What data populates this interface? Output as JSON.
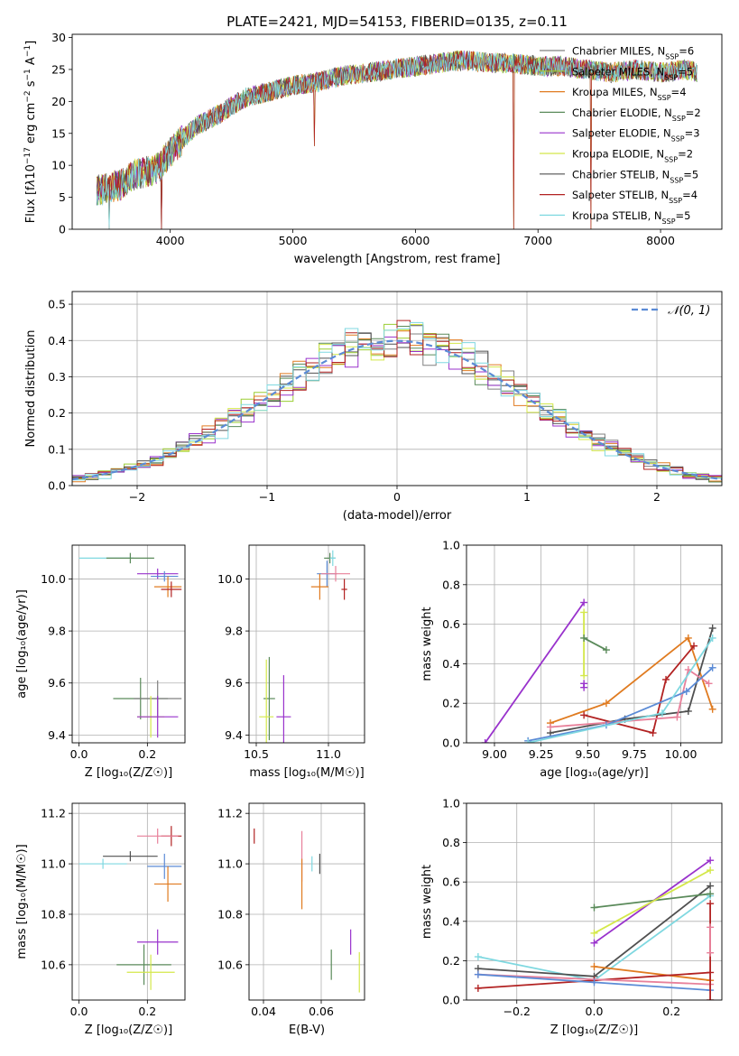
{
  "chart_data": [
    {
      "id": "spectrum",
      "type": "line",
      "title": "PLATE=2421, MJD=54153, FIBERID=0135, z=0.11",
      "xlabel": "wavelength [Angstrom, rest frame]",
      "ylabel_parts": [
        "Flux [f",
        "λ",
        "10",
        "−17",
        " erg cm",
        "−2",
        " s",
        "−1",
        " A",
        "−1",
        "]"
      ],
      "xlim": [
        3200,
        8500
      ],
      "ylim": [
        0,
        30.5
      ],
      "xticks": [
        4000,
        5000,
        6000,
        7000,
        8000
      ],
      "yticks": [
        0,
        5,
        10,
        15,
        20,
        25,
        30
      ],
      "grid": false,
      "legend_position": "top-right",
      "series": [
        {
          "name": "Chabrier MILES",
          "nssp": "6",
          "color": "#808080"
        },
        {
          "name": "Salpeter MILES",
          "nssp": "5",
          "color": "#9acd32"
        },
        {
          "name": "Kroupa MILES",
          "nssp": "4",
          "color": "#e07b20"
        },
        {
          "name": "Chabrier ELODIE",
          "nssp": "2",
          "color": "#5a8a5a"
        },
        {
          "name": "Salpeter ELODIE",
          "nssp": "3",
          "color": "#9932cc"
        },
        {
          "name": "Kroupa ELODIE",
          "nssp": "2",
          "color": "#d4e84a"
        },
        {
          "name": "Chabrier STELIB",
          "nssp": "5",
          "color": "#505050"
        },
        {
          "name": "Salpeter STELIB",
          "nssp": "4",
          "color": "#b22222"
        },
        {
          "name": "Kroupa STELIB",
          "nssp": "5",
          "color": "#7fd8e0"
        }
      ],
      "envelope": {
        "x": [
          3400,
          3500,
          3600,
          3700,
          3800,
          3900,
          4000,
          4100,
          4200,
          4300,
          4400,
          4600,
          4800,
          5000,
          5200,
          5400,
          5600,
          5800,
          6000,
          6200,
          6400,
          6600,
          6800,
          7000,
          7200,
          7400,
          7600,
          7800,
          8000,
          8200,
          8300
        ],
        "y": [
          6,
          6.5,
          7,
          8.5,
          9,
          9.5,
          12,
          14,
          16,
          17,
          18,
          20.5,
          21.5,
          22.5,
          23,
          24,
          24.5,
          25,
          25.5,
          26,
          26.5,
          26,
          26,
          25.5,
          25.5,
          25,
          24.5,
          25,
          24.5,
          25,
          24.5
        ]
      },
      "dips": [
        {
          "x": 3500,
          "y": 0
        },
        {
          "x": 3930,
          "y": 0
        },
        {
          "x": 5175,
          "y": 13
        },
        {
          "x": 6800,
          "y": 0
        },
        {
          "x": 7430,
          "y": 0
        }
      ]
    },
    {
      "id": "residuals",
      "type": "line",
      "xlabel": "(data-model)/error",
      "ylabel": "Normed distribution",
      "xlim": [
        -2.5,
        2.5
      ],
      "ylim": [
        0,
        0.535
      ],
      "xticks": [
        -2,
        -1,
        0,
        1,
        2
      ],
      "xtick_labels": [
        "−2",
        "−1",
        "0",
        "1",
        "2"
      ],
      "yticks": [
        0.0,
        0.1,
        0.2,
        0.3,
        0.4,
        0.5
      ],
      "ytick_labels": [
        "0.0",
        "0.1",
        "0.2",
        "0.3",
        "0.4",
        "0.5"
      ],
      "grid": true,
      "legend_position": "top-right",
      "legend_label": "𝒩(0, 1)",
      "gauss_color": "#5b8bd6",
      "bin_width": 0.1,
      "hist_colors": [
        "#808080",
        "#9acd32",
        "#e07b20",
        "#5a8a5a",
        "#9932cc",
        "#d4e84a",
        "#505050",
        "#b22222",
        "#7fd8e0"
      ]
    },
    {
      "id": "age_vs_Z",
      "type": "scatter",
      "xlabel": "Z [log₁₀(Z/Z☉)]",
      "ylabel": "age  [log₁₀(age/yr)]",
      "xlim": [
        -0.02,
        0.31
      ],
      "ylim": [
        9.37,
        10.13
      ],
      "xticks": [
        0.0,
        0.2
      ],
      "xtick_labels": [
        "0.0",
        "0.2"
      ],
      "yticks": [
        9.4,
        9.6,
        9.8,
        10.0
      ],
      "ytick_labels": [
        "9.4",
        "9.6",
        "9.8",
        "10.0"
      ],
      "grid": true,
      "points": [
        {
          "x": 0.08,
          "y": 10.08,
          "dx": 0.08,
          "dy": 0.0,
          "color": "#7fd8e0"
        },
        {
          "x": 0.15,
          "y": 10.08,
          "dx": 0.07,
          "dy": 0.02,
          "color": "#5a8a5a"
        },
        {
          "x": 0.23,
          "y": 10.02,
          "dx": 0.06,
          "dy": 0.02,
          "color": "#9932cc"
        },
        {
          "x": 0.25,
          "y": 10.01,
          "dx": 0.04,
          "dy": 0.02,
          "color": "#5b8bd6"
        },
        {
          "x": 0.26,
          "y": 9.97,
          "dx": 0.04,
          "dy": 0.04,
          "color": "#e07b20"
        },
        {
          "x": 0.27,
          "y": 9.96,
          "dx": 0.03,
          "dy": 0.03,
          "color": "#b22222"
        },
        {
          "x": 0.18,
          "y": 9.54,
          "dx": 0.08,
          "dy": 0.08,
          "color": "#5a8a5a"
        },
        {
          "x": 0.23,
          "y": 9.54,
          "dx": 0.07,
          "dy": 0.07,
          "color": "#808080"
        },
        {
          "x": 0.21,
          "y": 9.47,
          "dx": 0.04,
          "dy": 0.08,
          "color": "#d4e84a"
        },
        {
          "x": 0.23,
          "y": 9.47,
          "dx": 0.06,
          "dy": 0.08,
          "color": "#9932cc"
        }
      ]
    },
    {
      "id": "age_vs_mass",
      "type": "scatter",
      "xlabel": "mass [log₁₀(M/M☉)]",
      "xlim": [
        10.45,
        11.25
      ],
      "ylim": [
        9.37,
        10.13
      ],
      "xticks": [
        10.5,
        11.0
      ],
      "xtick_labels": [
        "10.5",
        "11.0"
      ],
      "yticks": [
        9.4,
        9.6,
        9.8,
        10.0
      ],
      "ytick_labels": [
        "9.4",
        "9.6",
        "9.8",
        "10.0"
      ],
      "grid": true,
      "points": [
        {
          "x": 11.01,
          "y": 10.08,
          "dx": 0.04,
          "dy": 0.02,
          "color": "#5a8a5a"
        },
        {
          "x": 11.03,
          "y": 10.08,
          "dx": 0.02,
          "dy": 0.03,
          "color": "#7fd8e0"
        },
        {
          "x": 10.99,
          "y": 10.02,
          "dx": 0.07,
          "dy": 0.05,
          "color": "#5b8bd6"
        },
        {
          "x": 11.05,
          "y": 10.02,
          "dx": 0.1,
          "dy": 0.03,
          "color": "#e8809a"
        },
        {
          "x": 10.94,
          "y": 9.97,
          "dx": 0.06,
          "dy": 0.05,
          "color": "#e07b20"
        },
        {
          "x": 11.11,
          "y": 9.96,
          "dx": 0.02,
          "dy": 0.04,
          "color": "#b22222"
        },
        {
          "x": 10.59,
          "y": 9.54,
          "dx": 0.04,
          "dy": 0.16,
          "color": "#5a8a5a"
        },
        {
          "x": 10.57,
          "y": 9.47,
          "dx": 0.05,
          "dy": 0.22,
          "color": "#d4e84a"
        },
        {
          "x": 10.69,
          "y": 9.47,
          "dx": 0.05,
          "dy": 0.16,
          "color": "#9932cc"
        }
      ]
    },
    {
      "id": "weight_vs_age",
      "type": "line",
      "xlabel": "age  [log₁₀(age/yr)]",
      "ylabel": "mass weight",
      "xlim": [
        8.85,
        10.22
      ],
      "ylim": [
        0,
        1.0
      ],
      "xticks": [
        9.0,
        9.25,
        9.5,
        9.75,
        10.0
      ],
      "xtick_labels": [
        "9.00",
        "9.25",
        "9.50",
        "9.75",
        "10.00"
      ],
      "yticks": [
        0.0,
        0.2,
        0.4,
        0.6,
        0.8,
        1.0
      ],
      "ytick_labels": [
        "0.0",
        "0.2",
        "0.4",
        "0.6",
        "0.8",
        "1.0"
      ],
      "grid": true,
      "series": [
        {
          "color": "#9932cc",
          "x": [
            8.95,
            9.48
          ],
          "y": [
            0.0,
            0.71
          ]
        },
        {
          "color": "#9932cc",
          "x": [
            9.48,
            9.48
          ],
          "y": [
            0.28,
            0.3
          ]
        },
        {
          "color": "#d4e84a",
          "x": [
            9.48,
            9.48
          ],
          "y": [
            0.34,
            0.66
          ]
        },
        {
          "color": "#5a8a5a",
          "x": [
            9.48,
            9.6
          ],
          "y": [
            0.53,
            0.47
          ]
        },
        {
          "color": "#e07b20",
          "x": [
            9.3,
            9.6,
            10.04,
            10.17
          ],
          "y": [
            0.1,
            0.2,
            0.53,
            0.17
          ]
        },
        {
          "color": "#b22222",
          "x": [
            9.48,
            9.85,
            9.92,
            10.07
          ],
          "y": [
            0.14,
            0.05,
            0.32,
            0.49
          ]
        },
        {
          "color": "#505050",
          "x": [
            9.3,
            9.7,
            10.04,
            10.17
          ],
          "y": [
            0.05,
            0.12,
            0.16,
            0.58
          ]
        },
        {
          "color": "#e8809a",
          "x": [
            9.3,
            9.98,
            10.04,
            10.15
          ],
          "y": [
            0.08,
            0.13,
            0.37,
            0.3
          ]
        },
        {
          "color": "#5b8bd6",
          "x": [
            9.18,
            9.6,
            10.03,
            10.17
          ],
          "y": [
            0.01,
            0.09,
            0.26,
            0.38
          ]
        },
        {
          "color": "#7fd8e0",
          "x": [
            9.18,
            9.9,
            10.17
          ],
          "y": [
            0.0,
            0.15,
            0.53
          ]
        }
      ]
    },
    {
      "id": "mass_vs_Z",
      "type": "scatter",
      "xlabel": "Z [log₁₀(Z/Z☉)]",
      "ylabel": "mass [log₁₀(M/M☉)]",
      "xlim": [
        -0.02,
        0.31
      ],
      "ylim": [
        10.46,
        11.24
      ],
      "xticks": [
        0.0,
        0.2
      ],
      "xtick_labels": [
        "0.0",
        "0.2"
      ],
      "yticks": [
        10.6,
        10.8,
        11.0,
        11.2
      ],
      "ytick_labels": [
        "10.6",
        "10.8",
        "11.0",
        "11.2"
      ],
      "grid": true,
      "points": [
        {
          "x": 0.27,
          "y": 11.11,
          "dx": 0.03,
          "dy": 0.04,
          "color": "#b22222"
        },
        {
          "x": 0.23,
          "y": 11.11,
          "dx": 0.06,
          "dy": 0.03,
          "color": "#e8809a"
        },
        {
          "x": 0.15,
          "y": 11.03,
          "dx": 0.08,
          "dy": 0.02,
          "color": "#505050"
        },
        {
          "x": 0.07,
          "y": 11.0,
          "dx": 0.07,
          "dy": 0.02,
          "color": "#7fd8e0"
        },
        {
          "x": 0.25,
          "y": 10.99,
          "dx": 0.05,
          "dy": 0.05,
          "color": "#5b8bd6"
        },
        {
          "x": 0.26,
          "y": 10.92,
          "dx": 0.04,
          "dy": 0.07,
          "color": "#e07b20"
        },
        {
          "x": 0.23,
          "y": 10.69,
          "dx": 0.06,
          "dy": 0.05,
          "color": "#9932cc"
        },
        {
          "x": 0.19,
          "y": 10.6,
          "dx": 0.08,
          "dy": 0.08,
          "color": "#5a8a5a"
        },
        {
          "x": 0.21,
          "y": 10.57,
          "dx": 0.07,
          "dy": 0.07,
          "color": "#d4e84a"
        }
      ]
    },
    {
      "id": "mass_vs_ebv",
      "type": "scatter",
      "xlabel": "E(B-V)",
      "xlim": [
        0.035,
        0.075
      ],
      "ylim": [
        10.46,
        11.24
      ],
      "xticks": [
        0.04,
        0.06
      ],
      "xtick_labels": [
        "0.04",
        "0.06"
      ],
      "yticks": [
        10.6,
        10.8,
        11.0,
        11.2
      ],
      "ytick_labels": [
        "10.6",
        "10.8",
        "11.0",
        "11.2"
      ],
      "grid": true,
      "points": [
        {
          "x": 0.0368,
          "y": 11.11,
          "dx": 0.0,
          "dy": 0.03,
          "color": "#b22222"
        },
        {
          "x": 0.0533,
          "y": 11.03,
          "dx": 0.0,
          "dy": 0.1,
          "color": "#e8809a"
        },
        {
          "x": 0.0533,
          "y": 10.92,
          "dx": 0.0,
          "dy": 0.1,
          "color": "#e07b20"
        },
        {
          "x": 0.0568,
          "y": 11.0,
          "dx": 0.0,
          "dy": 0.03,
          "color": "#7fd8e0"
        },
        {
          "x": 0.0595,
          "y": 11.0,
          "dx": 0.0,
          "dy": 0.04,
          "color": "#505050"
        },
        {
          "x": 0.0702,
          "y": 10.69,
          "dx": 0.0,
          "dy": 0.05,
          "color": "#9932cc"
        },
        {
          "x": 0.0635,
          "y": 10.6,
          "dx": 0.0,
          "dy": 0.06,
          "color": "#5a8a5a"
        },
        {
          "x": 0.0732,
          "y": 10.57,
          "dx": 0.0,
          "dy": 0.08,
          "color": "#d4e84a"
        }
      ]
    },
    {
      "id": "weight_vs_Z",
      "type": "line",
      "xlabel": "Z [log₁₀(Z/Z☉)]",
      "ylabel": "mass weight",
      "xlim": [
        -0.33,
        0.33
      ],
      "ylim": [
        0,
        1.0
      ],
      "xticks": [
        -0.2,
        0.0,
        0.2
      ],
      "xtick_labels": [
        "−0.2",
        "0.0",
        "0.2"
      ],
      "yticks": [
        0.0,
        0.2,
        0.4,
        0.6,
        0.8,
        1.0
      ],
      "ytick_labels": [
        "0.0",
        "0.2",
        "0.4",
        "0.6",
        "0.8",
        "1.0"
      ],
      "grid": true,
      "series": [
        {
          "color": "#7fd8e0",
          "x": [
            -0.3,
            0.0,
            0.3
          ],
          "y": [
            0.22,
            0.1,
            0.53
          ]
        },
        {
          "color": "#505050",
          "x": [
            -0.3,
            0.0,
            0.3
          ],
          "y": [
            0.16,
            0.12,
            0.58
          ]
        },
        {
          "color": "#e07b20",
          "x": [
            0.0,
            0.3
          ],
          "y": [
            0.17,
            0.1
          ]
        },
        {
          "color": "#5a8a5a",
          "x": [
            0.0,
            0.3
          ],
          "y": [
            0.47,
            0.54
          ]
        },
        {
          "color": "#9932cc",
          "x": [
            0.0,
            0.3
          ],
          "y": [
            0.29,
            0.71
          ]
        },
        {
          "color": "#d4e84a",
          "x": [
            0.0,
            0.3
          ],
          "y": [
            0.34,
            0.66
          ]
        },
        {
          "color": "#b22222",
          "x": [
            -0.3,
            0.0,
            0.3
          ],
          "y": [
            0.06,
            0.1,
            0.14
          ]
        },
        {
          "color": "#e8809a",
          "x": [
            -0.3,
            0.3
          ],
          "y": [
            0.13,
            0.08
          ]
        },
        {
          "color": "#5b8bd6",
          "x": [
            -0.3,
            0.0,
            0.3
          ],
          "y": [
            0.13,
            0.09,
            0.05
          ]
        },
        {
          "color": "#b22222",
          "x": [
            0.3,
            0.3
          ],
          "y": [
            0.0,
            0.49
          ]
        },
        {
          "color": "#e8809a",
          "x": [
            0.3,
            0.3
          ],
          "y": [
            0.24,
            0.37
          ]
        }
      ]
    }
  ]
}
